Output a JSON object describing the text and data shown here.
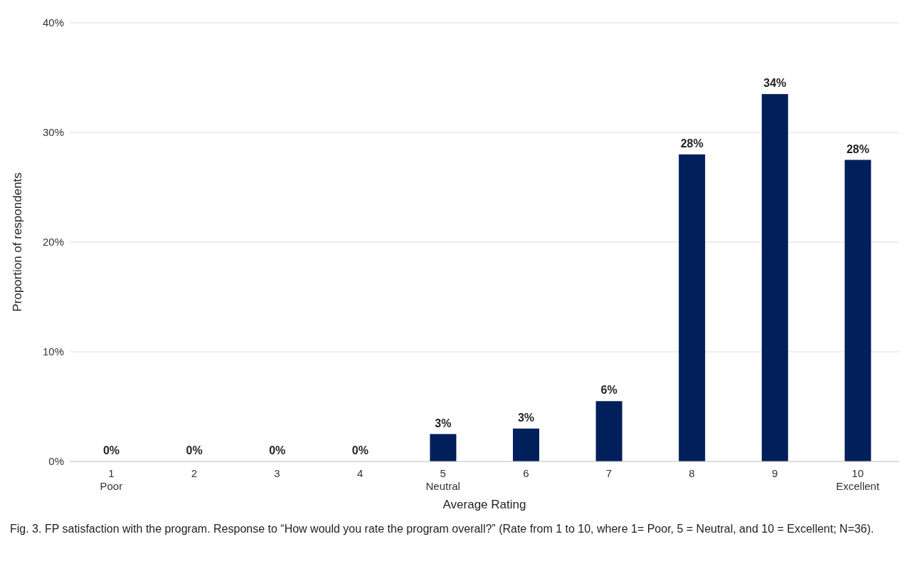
{
  "chart_data": {
    "type": "bar",
    "categories": [
      "1\nPoor",
      "2",
      "3",
      "4",
      "5\nNeutral",
      "6",
      "7",
      "8",
      "9",
      "10\nExcellent"
    ],
    "values": [
      0,
      0,
      0,
      0,
      2.5,
      3,
      5.5,
      28,
      33.5,
      27.5
    ],
    "value_labels": [
      "0%",
      "0%",
      "0%",
      "0%",
      "3%",
      "3%",
      "6%",
      "28%",
      "34%",
      "28%"
    ],
    "color": "#001f5b",
    "xlabel": "Average Rating",
    "ylabel": "Proportion of respondents",
    "ylim": [
      0,
      40
    ],
    "yticks": [
      {
        "value": 0,
        "label": "0%"
      },
      {
        "value": 10,
        "label": "10%"
      },
      {
        "value": 20,
        "label": "20%"
      },
      {
        "value": 30,
        "label": "30%"
      },
      {
        "value": 40,
        "label": "40%"
      }
    ],
    "grid": "y",
    "annotations": [
      "Fig. 3. FP satisfaction with the program. Response to “How would you rate the program overall?” (Rate from 1 to 10, where 1= Poor, 5 = Neutral, and 10 = Excellent; N=36)."
    ]
  }
}
